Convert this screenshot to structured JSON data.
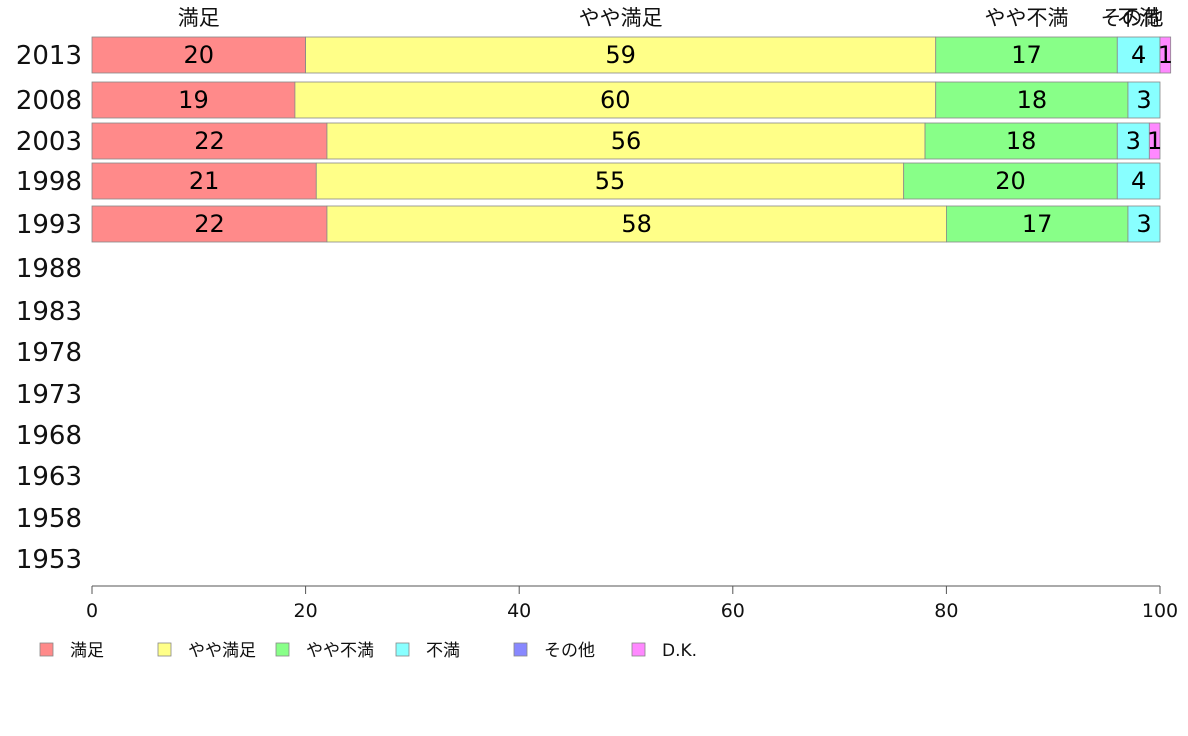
{
  "chart_data": {
    "type": "bar",
    "orientation": "horizontal",
    "stacked": true,
    "categories": [
      "2013",
      "2008",
      "2003",
      "1998",
      "1993",
      "1988",
      "1983",
      "1978",
      "1973",
      "1968",
      "1963",
      "1958",
      "1953"
    ],
    "series": [
      {
        "name": "満足",
        "color": "#ff8a8a",
        "values": [
          20,
          19,
          22,
          21,
          22,
          null,
          null,
          null,
          null,
          null,
          null,
          null,
          null
        ]
      },
      {
        "name": "やや満足",
        "color": "#ffff88",
        "values": [
          59,
          60,
          56,
          55,
          58,
          null,
          null,
          null,
          null,
          null,
          null,
          null,
          null
        ]
      },
      {
        "name": "やや不満",
        "color": "#88ff88",
        "values": [
          17,
          18,
          18,
          20,
          17,
          null,
          null,
          null,
          null,
          null,
          null,
          null,
          null
        ]
      },
      {
        "name": "不満",
        "color": "#88ffff",
        "values": [
          4,
          3,
          3,
          4,
          3,
          null,
          null,
          null,
          null,
          null,
          null,
          null,
          null
        ]
      },
      {
        "name": "その他",
        "color": "#8888ff",
        "values": [
          0,
          0,
          0,
          0,
          0,
          null,
          null,
          null,
          null,
          null,
          null,
          null,
          null
        ]
      },
      {
        "name": "D.K.",
        "color": "#ff88ff",
        "values": [
          1,
          0,
          1,
          0,
          0,
          null,
          null,
          null,
          null,
          null,
          null,
          null,
          null
        ]
      }
    ],
    "segment_labels": [
      [
        "20",
        "59",
        "17",
        "4",
        "",
        "1"
      ],
      [
        "19",
        "60",
        "18",
        "3",
        "",
        ""
      ],
      [
        "22",
        "56",
        "18",
        "3",
        "",
        "1"
      ],
      [
        "21",
        "55",
        "20",
        "4",
        "",
        ""
      ],
      [
        "22",
        "58",
        "17",
        "3",
        "",
        ""
      ]
    ],
    "top_labels": [
      "満足",
      "やや満足",
      "やや不満",
      "不満",
      "その他"
    ],
    "xlim": [
      0,
      100
    ],
    "xticks": [
      "0",
      "20",
      "40",
      "60",
      "80",
      "100"
    ],
    "grid": false,
    "legend": "bottom-left"
  }
}
